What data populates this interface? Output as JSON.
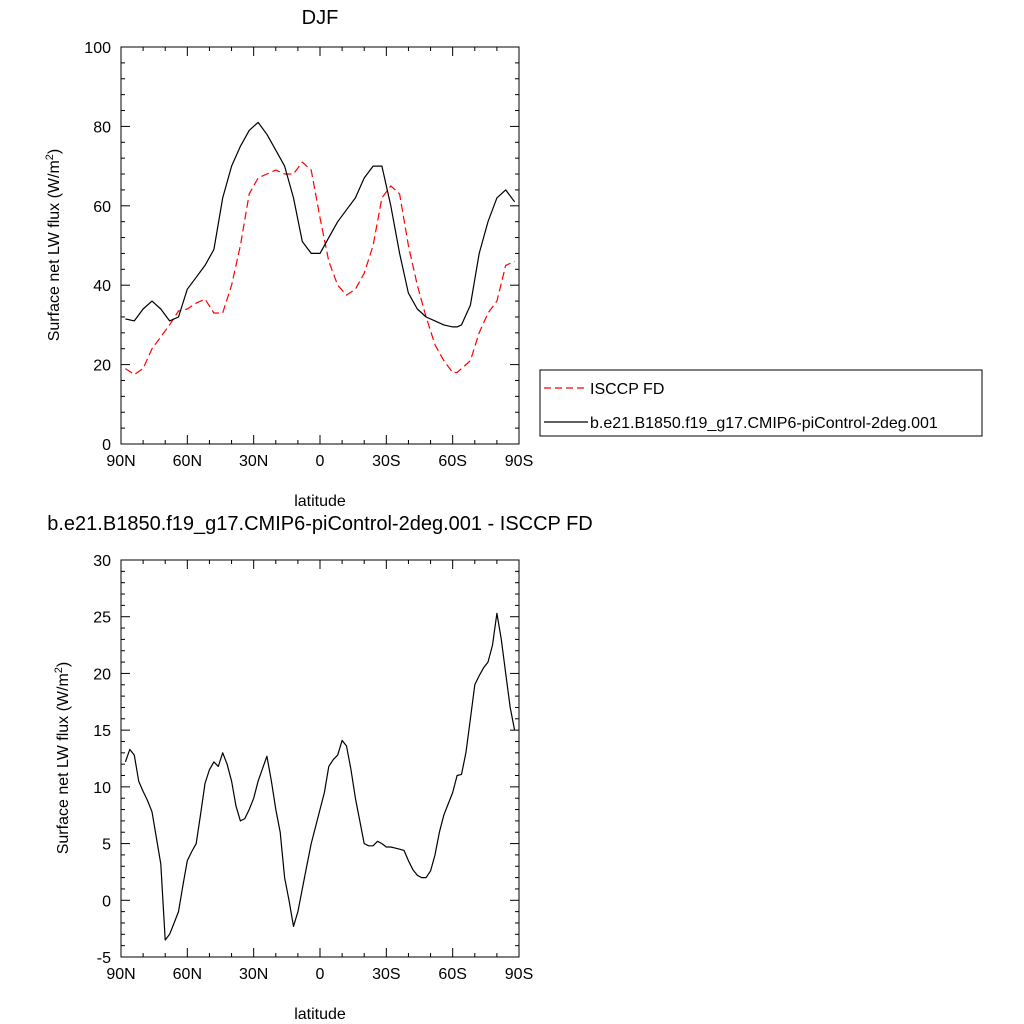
{
  "chart_data": [
    {
      "type": "line",
      "title": "DJF",
      "xlabel": "latitude",
      "ylabel": "Surface net LW flux (W/m²)",
      "ylabel_parts": {
        "main": "Surface net LW flux (W/m",
        "sup": "2",
        "tail": ")"
      },
      "xlim": [
        90,
        -90
      ],
      "ylim": [
        0,
        100
      ],
      "xticks": [
        {
          "value": 90,
          "label": "90N"
        },
        {
          "value": 60,
          "label": "60N"
        },
        {
          "value": 30,
          "label": "30N"
        },
        {
          "value": 0,
          "label": "0"
        },
        {
          "value": -30,
          "label": "30S"
        },
        {
          "value": -60,
          "label": "60S"
        },
        {
          "value": -90,
          "label": "90S"
        }
      ],
      "yticks": [
        {
          "value": 0,
          "label": "0"
        },
        {
          "value": 20,
          "label": "20"
        },
        {
          "value": 40,
          "label": "40"
        },
        {
          "value": 60,
          "label": "60"
        },
        {
          "value": 80,
          "label": "80"
        },
        {
          "value": 100,
          "label": "100"
        }
      ],
      "grid": false,
      "legend_position": "right",
      "series": [
        {
          "name": "ISCCP FD",
          "color": "#ff0000",
          "dash": true,
          "x": [
            88,
            84,
            80,
            76,
            72,
            68,
            64,
            60,
            56,
            52,
            48,
            44,
            40,
            36,
            32,
            28,
            24,
            20,
            16,
            12,
            8,
            4,
            0,
            -4,
            -8,
            -12,
            -16,
            -20,
            -24,
            -28,
            -32,
            -36,
            -40,
            -44,
            -48,
            -52,
            -56,
            -60,
            -62,
            -64,
            -68,
            -72,
            -76,
            -80,
            -84,
            -88
          ],
          "values": [
            19,
            17.5,
            19,
            24,
            27,
            30,
            33.5,
            34,
            35.5,
            36.5,
            33,
            33,
            40,
            50,
            63,
            67,
            68,
            69,
            68,
            68,
            71,
            69,
            57,
            46,
            40,
            37.5,
            39,
            43,
            50,
            62,
            65,
            63,
            50,
            40,
            32,
            25,
            21,
            18,
            18,
            19,
            21,
            28,
            33,
            36,
            45,
            46
          ]
        },
        {
          "name": "b.e21.B1850.f19_g17.CMIP6-piControl-2deg.001",
          "color": "#000000",
          "dash": false,
          "x": [
            88,
            84,
            80,
            76,
            72,
            68,
            64,
            60,
            56,
            52,
            48,
            44,
            40,
            36,
            32,
            28,
            24,
            20,
            16,
            12,
            8,
            4,
            0,
            -4,
            -8,
            -12,
            -16,
            -20,
            -24,
            -28,
            -32,
            -36,
            -40,
            -44,
            -48,
            -52,
            -56,
            -60,
            -62,
            -64,
            -68,
            -72,
            -76,
            -80,
            -84,
            -88
          ],
          "values": [
            31.5,
            31,
            34,
            36,
            34,
            31,
            32,
            39,
            42,
            45,
            49,
            62,
            70,
            75,
            79,
            81,
            78,
            74,
            70,
            62,
            51,
            48,
            48,
            52,
            56,
            59,
            62,
            67,
            70,
            70,
            60,
            48,
            38,
            34,
            32,
            31,
            30,
            29.5,
            29.5,
            30,
            35,
            48,
            56,
            62,
            64,
            61
          ]
        }
      ]
    },
    {
      "type": "line",
      "title": "b.e21.B1850.f19_g17.CMIP6-piControl-2deg.001 - ISCCP FD",
      "xlabel": "latitude",
      "ylabel": "Surface net LW flux (W/m²)",
      "ylabel_parts": {
        "main": "Surface net LW flux (W/m",
        "sup": "2",
        "tail": ")"
      },
      "xlim": [
        90,
        -90
      ],
      "ylim": [
        -5,
        30
      ],
      "xticks": [
        {
          "value": 90,
          "label": "90N"
        },
        {
          "value": 60,
          "label": "60N"
        },
        {
          "value": 30,
          "label": "30N"
        },
        {
          "value": 0,
          "label": "0"
        },
        {
          "value": -30,
          "label": "30S"
        },
        {
          "value": -60,
          "label": "60S"
        },
        {
          "value": -90,
          "label": "90S"
        }
      ],
      "yticks": [
        {
          "value": -5,
          "label": "-5"
        },
        {
          "value": 0,
          "label": "0"
        },
        {
          "value": 5,
          "label": "5"
        },
        {
          "value": 10,
          "label": "10"
        },
        {
          "value": 15,
          "label": "15"
        },
        {
          "value": 20,
          "label": "20"
        },
        {
          "value": 25,
          "label": "25"
        },
        {
          "value": 30,
          "label": "30"
        }
      ],
      "grid": false,
      "series": [
        {
          "color": "#000000",
          "dash": false,
          "x": [
            88,
            86,
            84,
            82,
            80,
            78,
            76,
            74,
            72,
            70,
            68,
            66,
            64,
            62,
            60,
            58,
            56,
            54,
            52,
            50,
            48,
            46,
            44,
            42,
            40,
            38,
            36,
            34,
            32,
            30,
            28,
            26,
            24,
            22,
            20,
            18,
            16,
            14,
            12,
            10,
            8,
            6,
            4,
            2,
            0,
            -2,
            -4,
            -6,
            -8,
            -10,
            -12,
            -14,
            -16,
            -18,
            -20,
            -22,
            -24,
            -26,
            -28,
            -30,
            -32,
            -34,
            -36,
            -38,
            -40,
            -42,
            -44,
            -46,
            -48,
            -50,
            -52,
            -54,
            -56,
            -58,
            -60,
            -62,
            -64,
            -66,
            -68,
            -70,
            -72,
            -74,
            -76,
            -78,
            -80,
            -82,
            -84,
            -86,
            -88
          ],
          "values": [
            12.2,
            13.3,
            12.8,
            10.5,
            9.6,
            8.8,
            7.8,
            5.5,
            3.2,
            -3.5,
            -3,
            -2,
            -1,
            1.3,
            3.5,
            4.3,
            5,
            7.6,
            10.3,
            11.5,
            12.2,
            11.8,
            13,
            12,
            10.5,
            8.3,
            7,
            7.2,
            8,
            9,
            10.5,
            11.6,
            12.7,
            10.5,
            8,
            6,
            2,
            0,
            -2.3,
            -1,
            1,
            3,
            5,
            6.5,
            8,
            9.5,
            11.8,
            12.4,
            12.8,
            14.1,
            13.6,
            11.5,
            9,
            7,
            5,
            4.8,
            4.8,
            5.2,
            5,
            4.7,
            4.7,
            4.6,
            4.5,
            4.4,
            3.5,
            2.7,
            2.2,
            2,
            2,
            2.6,
            4,
            6,
            7.5,
            8.5,
            9.5,
            11,
            11.1,
            13,
            16,
            19,
            19.8,
            20.5,
            21,
            22.5,
            25.3,
            23,
            20,
            17,
            15
          ]
        }
      ]
    }
  ]
}
